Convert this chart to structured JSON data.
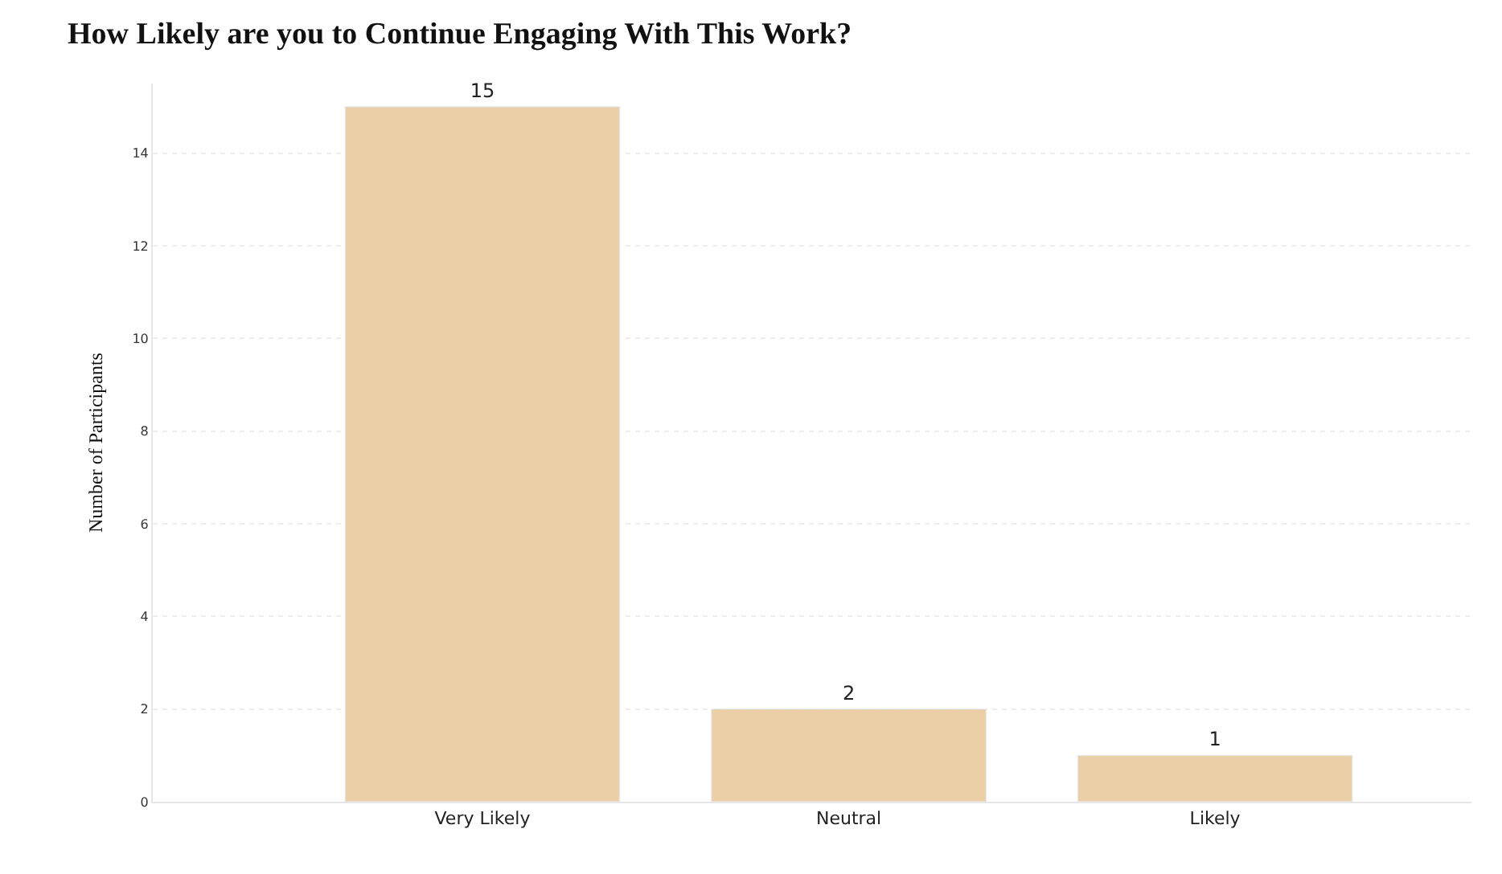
{
  "chart_data": {
    "type": "bar",
    "title": "How Likely are you to Continue Engaging With This Work?",
    "ylabel": "Number of Participants",
    "categories": [
      "Very Likely",
      "Neutral",
      "Likely"
    ],
    "values": [
      15,
      2,
      1
    ],
    "color": "#ebd0a7",
    "ylim": [
      0,
      15.5
    ],
    "yticks": [
      0,
      2,
      4,
      6,
      8,
      10,
      12,
      14
    ],
    "grid": "y",
    "data_labels": true,
    "legend": false
  }
}
